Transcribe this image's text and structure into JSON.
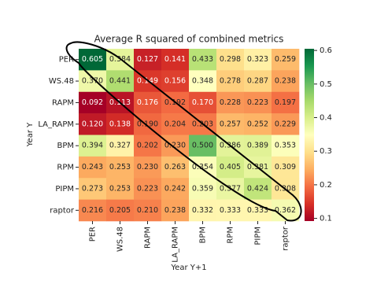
{
  "chart_data": {
    "type": "heatmap",
    "title": "Average R squared of combined metrics",
    "x_label": "Year Y+1",
    "y_label": "Year Y",
    "x_categories": [
      "PER",
      "WS.48",
      "RAPM",
      "LA_RAPM",
      "BPM",
      "RPM",
      "PIPM",
      "raptor"
    ],
    "y_categories": [
      "PER",
      "WS.48",
      "RAPM",
      "LA_RAPM",
      "BPM",
      "RPM",
      "PIPM",
      "raptor"
    ],
    "values": [
      [
        0.605,
        0.384,
        0.127,
        0.141,
        0.433,
        0.298,
        0.323,
        0.259
      ],
      [
        0.37,
        0.441,
        0.149,
        0.156,
        0.348,
        0.278,
        0.287,
        0.238
      ],
      [
        0.092,
        0.113,
        0.176,
        0.192,
        0.17,
        0.228,
        0.223,
        0.197
      ],
      [
        0.12,
        0.138,
        0.19,
        0.204,
        0.203,
        0.257,
        0.252,
        0.229
      ],
      [
        0.394,
        0.327,
        0.202,
        0.23,
        0.5,
        0.386,
        0.389,
        0.353
      ],
      [
        0.243,
        0.253,
        0.23,
        0.263,
        0.354,
        0.405,
        0.381,
        0.309
      ],
      [
        0.273,
        0.253,
        0.223,
        0.242,
        0.359,
        0.377,
        0.424,
        0.308
      ],
      [
        0.216,
        0.205,
        0.21,
        0.238,
        0.332,
        0.333,
        0.333,
        0.362
      ]
    ],
    "value_labels": [
      [
        "0.605",
        "0.384",
        "0.127",
        "0.141",
        "0.433",
        "0.298",
        "0.323",
        "0.259"
      ],
      [
        "0.370",
        "0.441",
        "0.149",
        "0.156",
        "0.348",
        "0.278",
        "0.287",
        "0.238"
      ],
      [
        "0.092",
        "0.113",
        "0.176",
        "0.192",
        "0.170",
        "0.228",
        "0.223",
        "0.197"
      ],
      [
        "0.120",
        "0.138",
        "0.190",
        "0.204",
        "0.203",
        "0.257",
        "0.252",
        "0.229"
      ],
      [
        "0.394",
        "0.327",
        "0.202",
        "0.230",
        "0.500",
        "0.386",
        "0.389",
        "0.353"
      ],
      [
        "0.243",
        "0.253",
        "0.230",
        "0.263",
        "0.354",
        "0.405",
        "0.381",
        "0.309"
      ],
      [
        "0.273",
        "0.253",
        "0.223",
        "0.242",
        "0.359",
        "0.377",
        "0.424",
        "0.308"
      ],
      [
        "0.216",
        "0.205",
        "0.210",
        "0.238",
        "0.332",
        "0.333",
        "0.333",
        "0.362"
      ]
    ],
    "colormap": "RdYlGn",
    "colorbar_lim": [
      0.092,
      0.605
    ],
    "colorbar_ticks": [
      0.1,
      0.2,
      0.3,
      0.4,
      0.5,
      0.6
    ]
  }
}
